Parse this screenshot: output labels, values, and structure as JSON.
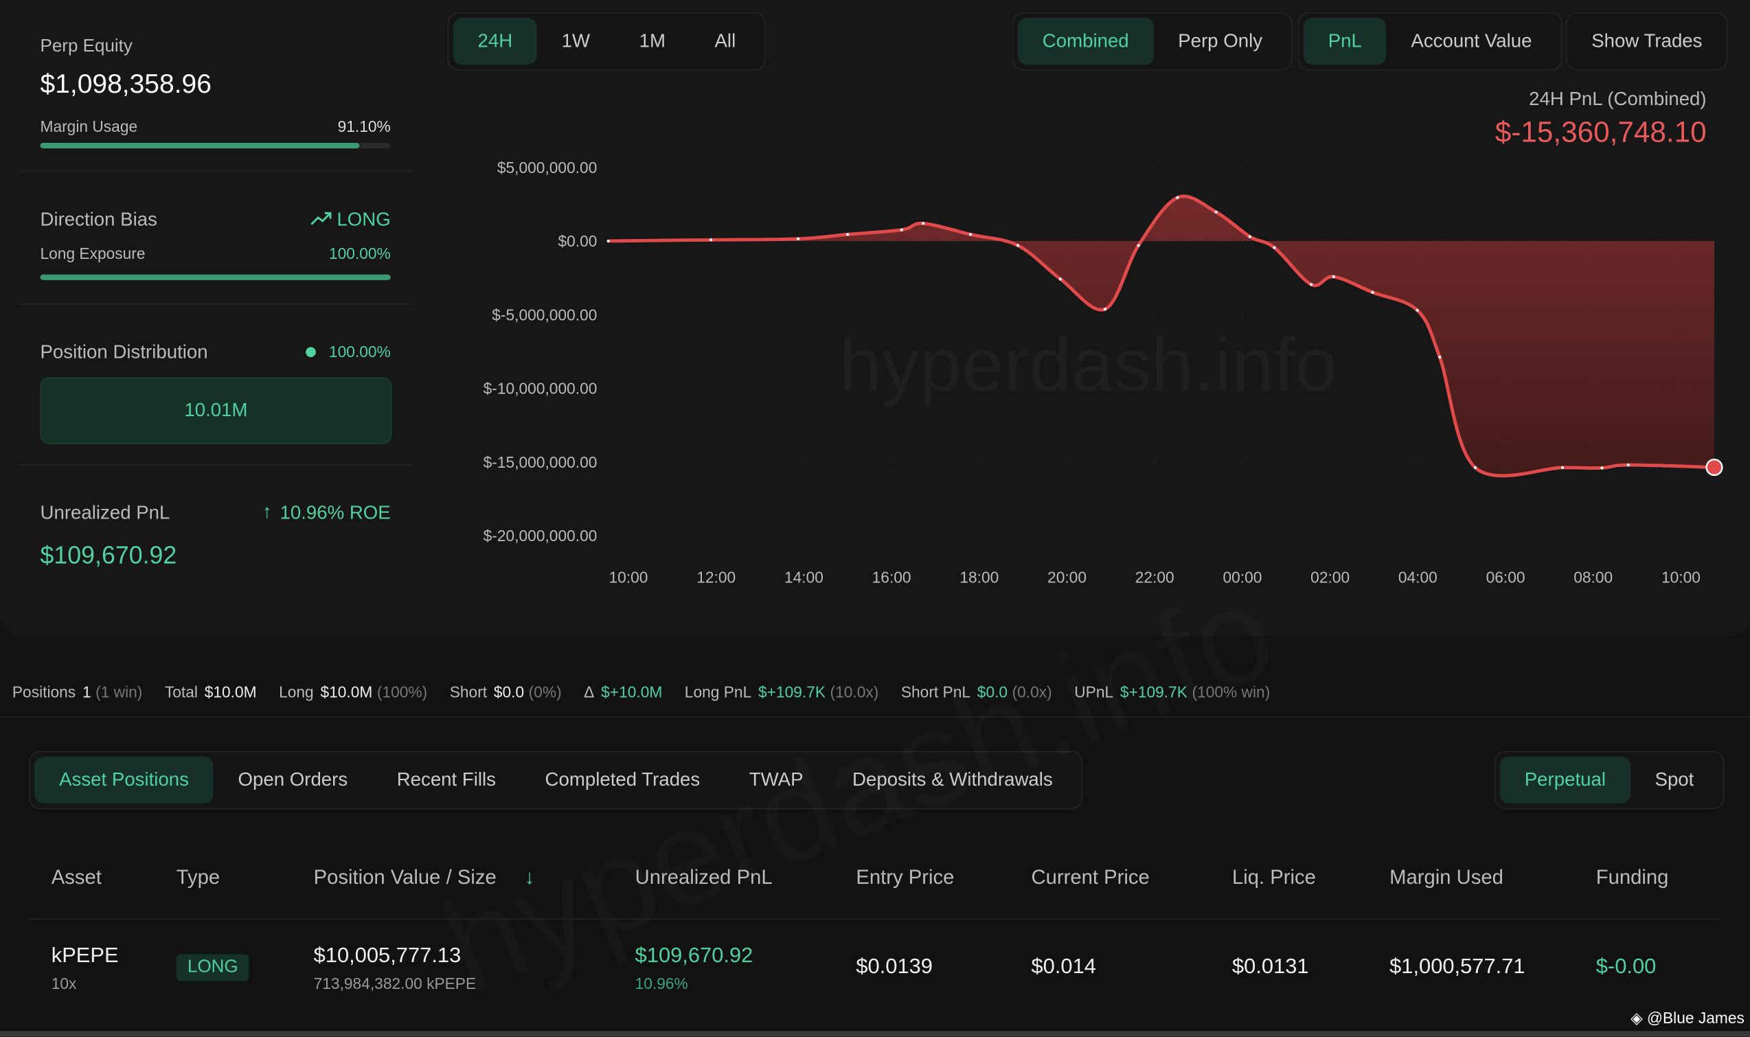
{
  "sidebar": {
    "equity_label": "Perp Equity",
    "equity_value": "$1,098,358.96",
    "margin_label": "Margin Usage",
    "margin_usage": {
      "value": 91.1,
      "label": "91.10%"
    },
    "bias_label": "Direction Bias",
    "bias_value": "LONG",
    "exposure_label": "Long Exposure",
    "long_exposure": {
      "value": 100.0,
      "label": "100.00%"
    },
    "distribution_label": "Position Distribution",
    "distribution_value": "100.00%",
    "distribution_box": "10.01M",
    "upnl_label": "Unrealized PnL",
    "upnl_roe": "10.96% ROE",
    "upnl_value": "$109,670.92"
  },
  "controls": {
    "ranges": [
      "24H",
      "1W",
      "1M",
      "All"
    ],
    "modes": [
      "Combined",
      "Perp Only"
    ],
    "metrics": [
      "PnL",
      "Account Value"
    ],
    "show_trades": "Show Trades"
  },
  "chart_data": {
    "type": "line",
    "title": "24H PnL (Combined)",
    "subtitle": "$-15,360,748.10",
    "watermark": "hyperdash.info",
    "series": [
      {
        "name": "PnL",
        "color": "#e04a4a",
        "x": [
          -0.46,
          1.88,
          3.87,
          5.0,
          6.23,
          6.72,
          7.8,
          8.88,
          9.85,
          10.87,
          11.63,
          12.52,
          13.4,
          14.17,
          14.73,
          15.57,
          16.08,
          16.97,
          17.99,
          18.5,
          19.31,
          21.3,
          22.2,
          22.8,
          24.76
        ],
        "values": [
          0,
          80000,
          150000,
          450000,
          760000,
          1200000,
          450000,
          -300000,
          -2580000,
          -4620000,
          -300000,
          2950000,
          1970000,
          300000,
          -450000,
          -2950000,
          -2420000,
          -3480000,
          -4700000,
          -7880000,
          -15380000,
          -15380000,
          -15400000,
          -15200000,
          -15360748.1
        ]
      }
    ],
    "xlim": [
      -0.46,
      24.76
    ],
    "xticks": [
      {
        "value": 0,
        "label": "10:00"
      },
      {
        "value": 2,
        "label": "12:00"
      },
      {
        "value": 4,
        "label": "14:00"
      },
      {
        "value": 6,
        "label": "16:00"
      },
      {
        "value": 8,
        "label": "18:00"
      },
      {
        "value": 10,
        "label": "20:00"
      },
      {
        "value": 12,
        "label": "22:00"
      },
      {
        "value": 14,
        "label": "00:00"
      },
      {
        "value": 16,
        "label": "02:00"
      },
      {
        "value": 18,
        "label": "04:00"
      },
      {
        "value": 20,
        "label": "06:00"
      },
      {
        "value": 22,
        "label": "08:00"
      },
      {
        "value": 24,
        "label": "10:00"
      }
    ],
    "ylim": [
      -20000000,
      5000000
    ],
    "yticks": [
      {
        "value": 5000000,
        "label": "$5,000,000.00"
      },
      {
        "value": 0,
        "label": "$0.00"
      },
      {
        "value": -5000000,
        "label": "$-5,000,000.00"
      },
      {
        "value": -10000000,
        "label": "$-10,000,000.00"
      },
      {
        "value": -15000000,
        "label": "$-15,000,000.00"
      },
      {
        "value": -20000000,
        "label": "$-20,000,000.00"
      }
    ],
    "grid": true
  },
  "summary": [
    {
      "label": "Positions",
      "value": "1",
      "note": "(1 win)"
    },
    {
      "label": "Total",
      "value": "$10.0M"
    },
    {
      "label": "Long",
      "value": "$10.0M",
      "note": "(100%)"
    },
    {
      "label": "Short",
      "value": "$0.0",
      "note": "(0%)"
    },
    {
      "label": "Δ",
      "value": "$+10.0M",
      "positive": true
    },
    {
      "label": "Long PnL",
      "value": "$+109.7K",
      "note": "(10.0x)",
      "positive": true
    },
    {
      "label": "Short PnL",
      "value": "$0.0",
      "note": "(0.0x)",
      "positive": true
    },
    {
      "label": "UPnL",
      "value": "$+109.7K",
      "note": "(100% win)",
      "positive": true
    }
  ],
  "tabs": [
    "Asset Positions",
    "Open Orders",
    "Recent Fills",
    "Completed Trades",
    "TWAP",
    "Deposits & Withdrawals"
  ],
  "market_tabs": [
    "Perpetual",
    "Spot"
  ],
  "table": {
    "headers": [
      "Asset",
      "Type",
      "Position Value / Size",
      "Unrealized PnL",
      "Entry Price",
      "Current Price",
      "Liq. Price",
      "Margin Used",
      "Funding"
    ],
    "rows": [
      [
        {
          "main": "kPEPE",
          "sub": "10x"
        },
        {
          "main": "LONG"
        },
        {
          "main": "$10,005,777.13",
          "sub": "713,984,382.00 kPEPE"
        },
        {
          "main": "$109,670.92",
          "sub": "10.96%"
        },
        {
          "main": "$0.0139"
        },
        {
          "main": "$0.014"
        },
        {
          "main": "$0.0131"
        },
        {
          "main": "$1,000,577.71"
        },
        {
          "main": "$-0.00"
        }
      ]
    ]
  },
  "credit": "@Blue James"
}
